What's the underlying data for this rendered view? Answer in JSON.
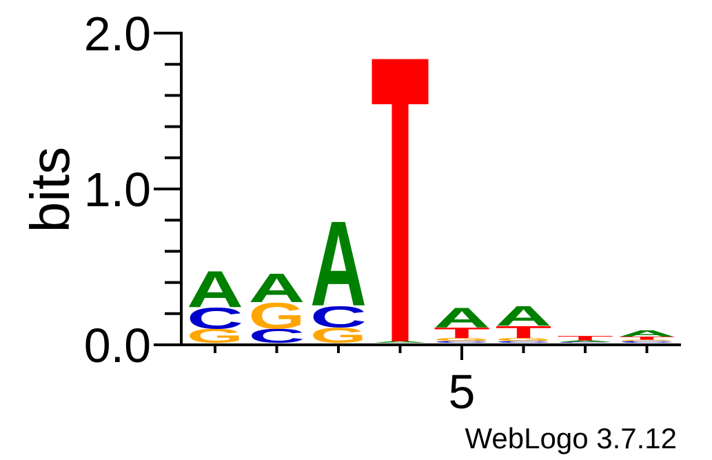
{
  "chart_data": {
    "type": "sequence-logo",
    "ylabel": "bits",
    "ylim": [
      0,
      2.0
    ],
    "y_tick_labels": [
      "0.0",
      "1.0",
      "2.0"
    ],
    "y_tick_values": [
      0,
      1.0,
      2.0
    ],
    "y_minor_step": 0.2,
    "x_tick_label": "5",
    "x_tick_label_position": 5,
    "positions": [
      1,
      2,
      3,
      4,
      5,
      6,
      7,
      8
    ],
    "colors": {
      "A": "#008000",
      "C": "#0000cc",
      "G": "#ffa500",
      "T": "#ff0000"
    },
    "stacks": [
      {
        "position": 1,
        "letters": [
          {
            "letter": "G",
            "bits": 0.09
          },
          {
            "letter": "C",
            "bits": 0.14
          },
          {
            "letter": "A",
            "bits": 0.24
          }
        ]
      },
      {
        "position": 2,
        "letters": [
          {
            "letter": "C",
            "bits": 0.09
          },
          {
            "letter": "G",
            "bits": 0.17
          },
          {
            "letter": "A",
            "bits": 0.19
          }
        ]
      },
      {
        "position": 3,
        "letters": [
          {
            "letter": "G",
            "bits": 0.1
          },
          {
            "letter": "C",
            "bits": 0.14
          },
          {
            "letter": "A",
            "bits": 0.56
          }
        ]
      },
      {
        "position": 4,
        "letters": [
          {
            "letter": "A",
            "bits": 0.01
          },
          {
            "letter": "T",
            "bits": 1.81
          }
        ]
      },
      {
        "position": 5,
        "letters": [
          {
            "letter": "C",
            "bits": 0.01
          },
          {
            "letter": "G",
            "bits": 0.02
          },
          {
            "letter": "T",
            "bits": 0.07
          },
          {
            "letter": "A",
            "bits": 0.13
          }
        ]
      },
      {
        "position": 6,
        "letters": [
          {
            "letter": "C",
            "bits": 0.01
          },
          {
            "letter": "G",
            "bits": 0.02
          },
          {
            "letter": "T",
            "bits": 0.08
          },
          {
            "letter": "A",
            "bits": 0.13
          }
        ]
      },
      {
        "position": 7,
        "letters": [
          {
            "letter": "C",
            "bits": 0.005
          },
          {
            "letter": "A",
            "bits": 0.01
          },
          {
            "letter": "T",
            "bits": 0.03
          }
        ]
      },
      {
        "position": 8,
        "letters": [
          {
            "letter": "C",
            "bits": 0.01
          },
          {
            "letter": "G",
            "bits": 0.01
          },
          {
            "letter": "T",
            "bits": 0.02
          },
          {
            "letter": "A",
            "bits": 0.04
          }
        ]
      }
    ]
  },
  "footer": {
    "credit": "WebLogo 3.7.12"
  }
}
